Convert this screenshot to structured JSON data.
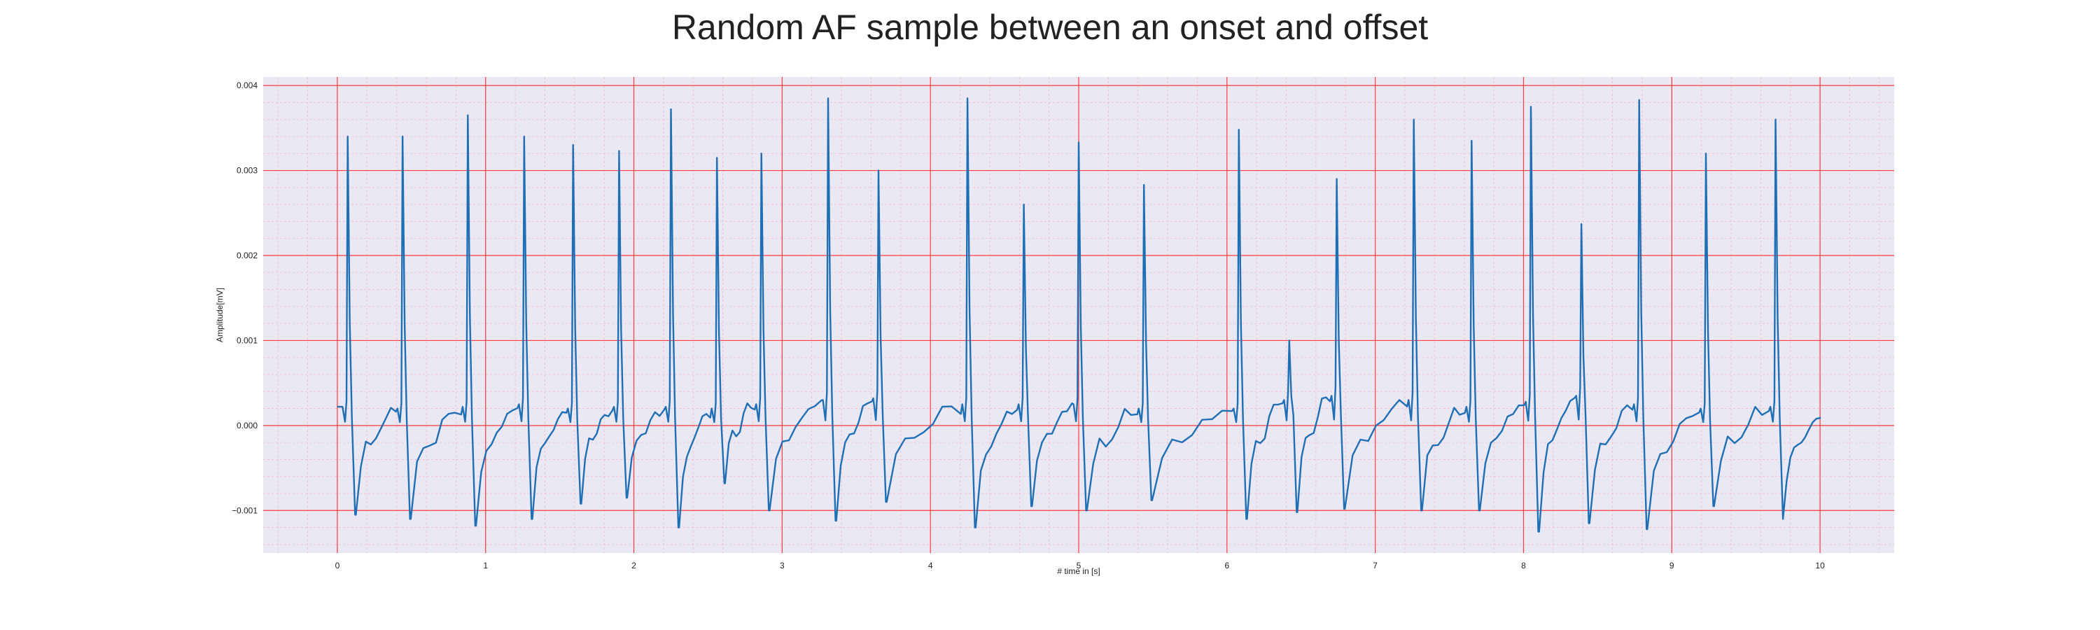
{
  "chart_data": {
    "type": "line",
    "title": "Random AF sample between an onset and offset",
    "xlabel": "# time in [s]",
    "ylabel": "Amplitude[mV]",
    "xlim": [
      -0.5,
      10.5
    ],
    "ylim": [
      -0.0015,
      0.0041
    ],
    "xticks": [
      0,
      1,
      2,
      3,
      4,
      5,
      6,
      7,
      8,
      9,
      10
    ],
    "xtick_labels": [
      "0",
      "1",
      "2",
      "3",
      "4",
      "5",
      "6",
      "7",
      "8",
      "9",
      "10"
    ],
    "yticks": [
      -0.001,
      0.0,
      0.001,
      0.002,
      0.003,
      0.004
    ],
    "ytick_labels": [
      "−0.001",
      "0.000",
      "0.001",
      "0.002",
      "0.003",
      "0.004"
    ],
    "grid": true,
    "minor_grid": true,
    "legend": false,
    "colors": {
      "line": "#1f6fb5",
      "plot_background": "#eae8f3",
      "major_grid": "#ff3b3b",
      "minor_grid": "#f3b8c8"
    },
    "series": [
      {
        "beats": [
          {
            "t": 0.07,
            "peak": 0.0034,
            "pre": 0.00022,
            "trough": -0.00105
          },
          {
            "t": 0.44,
            "peak": 0.0034,
            "pre": 0.0002,
            "trough": -0.0011
          },
          {
            "t": 0.88,
            "peak": 0.00365,
            "pre": 0.00022,
            "trough": -0.00118
          },
          {
            "t": 1.26,
            "peak": 0.0034,
            "pre": 0.00025,
            "trough": -0.0011
          },
          {
            "t": 1.59,
            "peak": 0.0033,
            "pre": 0.0002,
            "trough": -0.00092
          },
          {
            "t": 1.9,
            "peak": 0.00323,
            "pre": 0.00022,
            "trough": -0.00085
          },
          {
            "t": 2.25,
            "peak": 0.00372,
            "pre": 0.00022,
            "trough": -0.0012
          },
          {
            "t": 2.56,
            "peak": 0.00315,
            "pre": 0.0002,
            "trough": -0.00068
          },
          {
            "t": 2.86,
            "peak": 0.0032,
            "pre": 0.00025,
            "trough": -0.001
          },
          {
            "t": 3.31,
            "peak": 0.00385,
            "pre": 0.0003,
            "trough": -0.00112
          },
          {
            "t": 3.65,
            "peak": 0.003,
            "pre": 0.00032,
            "trough": -0.0009
          },
          {
            "t": 4.25,
            "peak": 0.00385,
            "pre": 0.00025,
            "trough": -0.0012
          },
          {
            "t": 4.63,
            "peak": 0.0026,
            "pre": 0.00025,
            "trough": -0.00095
          },
          {
            "t": 5.0,
            "peak": 0.00333,
            "pre": 0.00025,
            "trough": -0.001
          },
          {
            "t": 5.44,
            "peak": 0.00283,
            "pre": 0.0002,
            "trough": -0.00088
          },
          {
            "t": 6.08,
            "peak": 0.00348,
            "pre": 0.0002,
            "trough": -0.0011
          },
          {
            "t": 6.42,
            "peak": 0.001,
            "pre": 0.0003,
            "trough": -0.00102
          },
          {
            "t": 6.74,
            "peak": 0.0029,
            "pre": 0.00035,
            "trough": -0.00098
          },
          {
            "t": 7.26,
            "peak": 0.0036,
            "pre": 0.0003,
            "trough": -0.001
          },
          {
            "t": 7.65,
            "peak": 0.00335,
            "pre": 0.00022,
            "trough": -0.001
          },
          {
            "t": 8.05,
            "peak": 0.00375,
            "pre": 0.00028,
            "trough": -0.00125
          },
          {
            "t": 8.39,
            "peak": 0.00237,
            "pre": 0.00035,
            "trough": -0.00115
          },
          {
            "t": 8.78,
            "peak": 0.00383,
            "pre": 0.00025,
            "trough": -0.00122
          },
          {
            "t": 9.23,
            "peak": 0.0032,
            "pre": 0.0002,
            "trough": -0.00095
          },
          {
            "t": 9.7,
            "peak": 0.0036,
            "pre": 0.00022,
            "trough": -0.0011
          }
        ],
        "start": {
          "t": 0.0,
          "v": 0.00022
        },
        "end": {
          "t": 10.0,
          "v": 0.0001
        }
      }
    ]
  }
}
